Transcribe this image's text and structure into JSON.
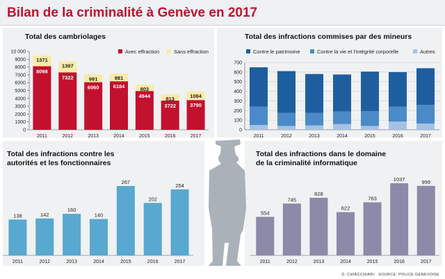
{
  "header": {
    "title": "Bilan de la criminalité à Genève en 2017"
  },
  "footer": {
    "credit": "D. CHIACCHIARI · SOURCE: POLICE GENEVOISE"
  },
  "colors": {
    "title_red": "#c3102f",
    "cambriolages_avec": "#c3102f",
    "cambriolages_sans": "#f9eba6",
    "mineurs_patrimoine": "#1e5e9f",
    "mineurs_vie": "#4a8ac8",
    "mineurs_autres": "#a5c2e3",
    "autorites": "#58a8cf",
    "informatique": "#8d8aa9",
    "silhouette": "#aab1b8"
  },
  "chart_data": [
    {
      "id": "cambriolages",
      "type": "bar",
      "stacked": true,
      "title": "Total des cambriolages",
      "categories": [
        "2011",
        "2012",
        "2013",
        "2014",
        "2015",
        "2016",
        "2017"
      ],
      "series": [
        {
          "name": "Avec effraction",
          "values": [
            8098,
            7322,
            6060,
            6184,
            4944,
            3722,
            3790
          ]
        },
        {
          "name": "Sans effraction",
          "values": [
            1371,
            1397,
            991,
            981,
            803,
            813,
            1084
          ]
        }
      ],
      "ylim": [
        0,
        10000
      ],
      "yticks": [
        "0",
        "1000",
        "2000",
        "3000",
        "4000",
        "5000",
        "6000",
        "7000",
        "8000",
        "9000",
        "10 000"
      ],
      "legend": "top-right",
      "grid": false
    },
    {
      "id": "mineurs",
      "type": "bar",
      "stacked": true,
      "title": "Total des infractions commises par des mineurs",
      "categories": [
        "2011",
        "2012",
        "2013",
        "2014",
        "2015",
        "2016",
        "2017"
      ],
      "series": [
        {
          "name": "Contre le patrimoine",
          "values": [
            410,
            435,
            405,
            385,
            410,
            360,
            380
          ]
        },
        {
          "name": "Contre la vie et l'intégrité corporelle",
          "values": [
            190,
            135,
            130,
            130,
            155,
            155,
            195
          ]
        },
        {
          "name": "Autres",
          "values": [
            50,
            40,
            45,
            60,
            40,
            85,
            65
          ]
        }
      ],
      "ylim": [
        0,
        700
      ],
      "yticks": [
        "0",
        "100",
        "200",
        "300",
        "400",
        "500",
        "600",
        "700"
      ],
      "legend": "top",
      "grid": true
    },
    {
      "id": "autorites",
      "type": "bar",
      "title": "Total des infractions contre les autorités et les fonctionnaires",
      "categories": [
        "2011",
        "2012",
        "2013",
        "2014",
        "2015",
        "2016",
        "2017"
      ],
      "values": [
        138,
        142,
        160,
        140,
        267,
        202,
        254
      ],
      "data_labels": true
    },
    {
      "id": "informatique",
      "type": "bar",
      "title": "Total des infractions dans le domaine de la criminalité informatique",
      "categories": [
        "2011",
        "2012",
        "2013",
        "2014",
        "2015",
        "2016",
        "2017"
      ],
      "values": [
        554,
        745,
        828,
        622,
        763,
        1037,
        999
      ],
      "data_labels": true
    }
  ]
}
